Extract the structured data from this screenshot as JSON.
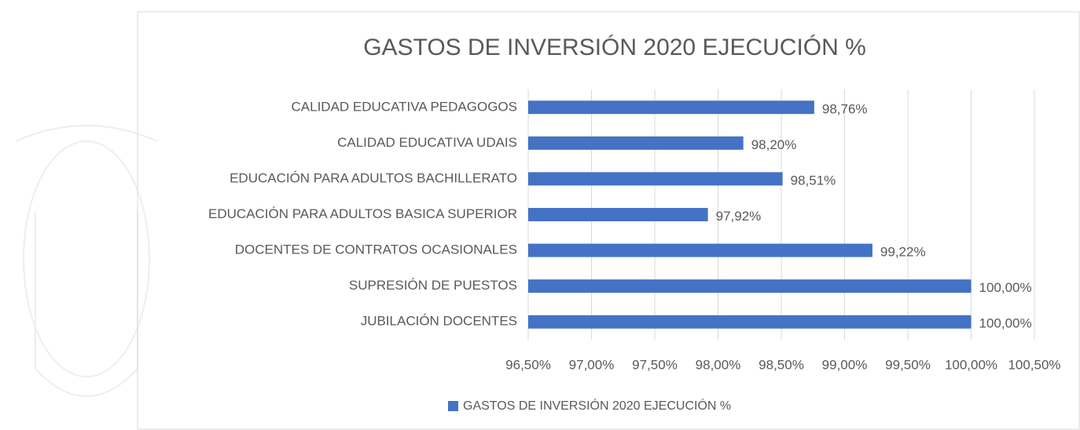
{
  "chart_data": {
    "type": "bar",
    "orientation": "horizontal",
    "title": "GASTOS DE INVERSIÓN 2020 EJECUCIÓN %",
    "categories": [
      "CALIDAD EDUCATIVA PEDAGOGOS",
      "CALIDAD EDUCATIVA UDAIS",
      "EDUCACIÓN PARA ADULTOS BACHILLERATO",
      "EDUCACIÓN PARA ADULTOS BASICA SUPERIOR",
      "DOCENTES DE CONTRATOS OCASIONALES",
      "SUPRESIÓN DE PUESTOS",
      "JUBILACIÓN DOCENTES"
    ],
    "series": [
      {
        "name": "GASTOS DE INVERSIÓN 2020 EJECUCIÓN %",
        "color": "#4472c4",
        "values": [
          98.76,
          98.2,
          98.51,
          97.92,
          99.22,
          100,
          100
        ],
        "value_labels": [
          "98,76%",
          "98,20%",
          "98,51%",
          "97,92%",
          "99,22%",
          "100,00%",
          "100,00%"
        ]
      }
    ],
    "xlim": [
      96.5,
      100.5
    ],
    "xticks": [
      {
        "value": 96.5,
        "label": "96,50%"
      },
      {
        "value": 97,
        "label": "97,00%"
      },
      {
        "value": 97.5,
        "label": "97,50%"
      },
      {
        "value": 98,
        "label": "98,00%"
      },
      {
        "value": 98.5,
        "label": "98,50%"
      },
      {
        "value": 99,
        "label": "99,00%"
      },
      {
        "value": 99.5,
        "label": "99,50%"
      },
      {
        "value": 100,
        "label": "100,00%"
      },
      {
        "value": 100.5,
        "label": "100,50%"
      }
    ],
    "grid": true,
    "legend": "bottom"
  }
}
